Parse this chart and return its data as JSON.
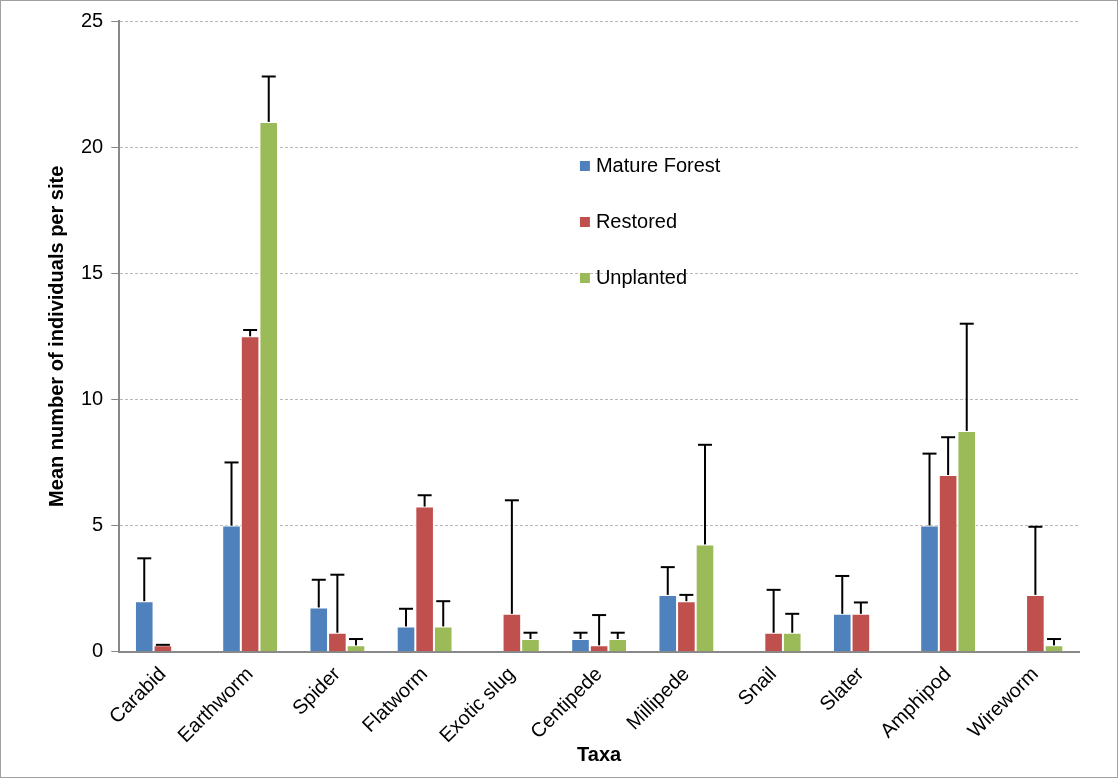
{
  "chart_data": {
    "type": "bar",
    "xlabel": "Taxa",
    "ylabel": "Mean number of individuals per site",
    "categories": [
      "Carabid",
      "Earthworm",
      "Spider",
      "Flatworm",
      "Exotic slug",
      "Centipede",
      "Millipede",
      "Snail",
      "Slater",
      "Amphipod",
      "Wireworm"
    ],
    "series": [
      {
        "name": "Mature Forest",
        "color": "#4f81bd",
        "values": [
          2,
          5,
          1.75,
          1,
          0,
          0.5,
          2.25,
          0,
          1.5,
          5,
          0
        ],
        "errors": [
          [
            2,
            3.7
          ],
          [
            5,
            7.5
          ],
          [
            1.75,
            2.85
          ],
          [
            1,
            1.7
          ],
          null,
          [
            0.5,
            0.75
          ],
          [
            2.25,
            3.35
          ],
          null,
          [
            1.5,
            3
          ],
          [
            5,
            7.85
          ],
          null
        ]
      },
      {
        "name": "Restored",
        "color": "#c0504d",
        "values": [
          0.25,
          12.5,
          0.75,
          5.75,
          1.5,
          0.25,
          2,
          0.75,
          1.5,
          7,
          2.25
        ],
        "errors": [
          [
            0.25,
            0.27
          ],
          [
            12.5,
            12.75
          ],
          [
            0.75,
            3.05
          ],
          [
            5.75,
            6.2
          ],
          [
            1.5,
            6
          ],
          [
            0.25,
            1.45
          ],
          [
            2,
            2.25
          ],
          [
            0.75,
            2.45
          ],
          [
            1.5,
            1.95
          ],
          [
            7,
            8.5
          ],
          [
            2.25,
            4.95
          ]
        ]
      },
      {
        "name": "Unplanted",
        "color": "#9bbb59",
        "values": [
          0,
          21,
          0.25,
          1,
          0.5,
          0.5,
          4.25,
          0.75,
          0,
          8.75,
          0.25
        ],
        "errors": [
          null,
          [
            21,
            22.8
          ],
          [
            0.25,
            0.5
          ],
          [
            1,
            2
          ],
          [
            0.5,
            0.75
          ],
          [
            0.5,
            0.75
          ],
          [
            4.25,
            8.2
          ],
          [
            0.75,
            1.5
          ],
          null,
          [
            8.75,
            13
          ],
          [
            0.25,
            0.5
          ]
        ]
      }
    ],
    "ylim": [
      0,
      25
    ],
    "yticks": [
      0,
      5,
      10,
      15,
      20,
      25
    ],
    "grid": "y",
    "legend": "top right"
  }
}
